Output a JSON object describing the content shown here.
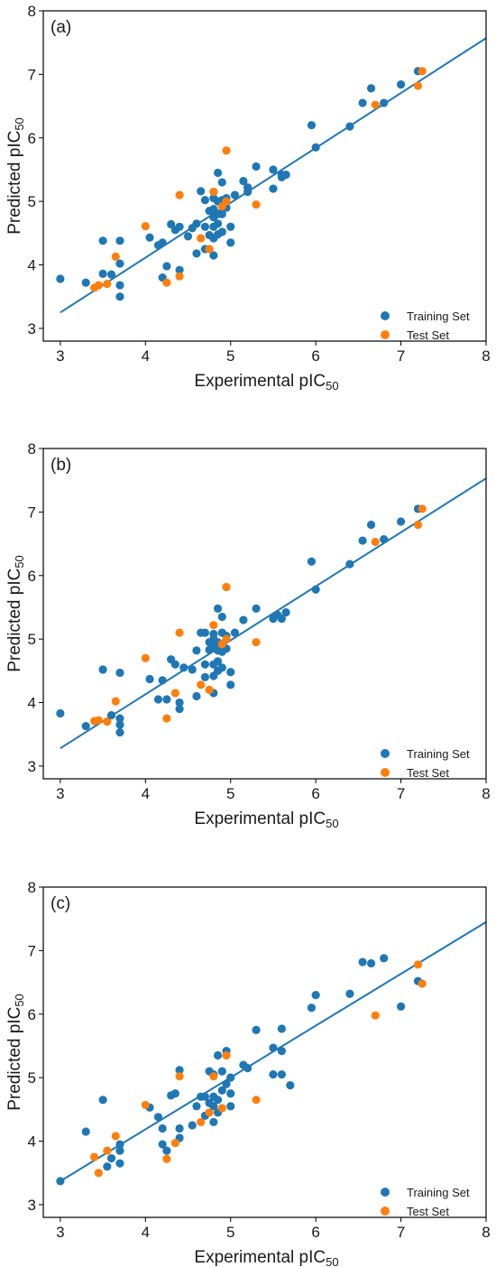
{
  "colors": {
    "training": "#1f77b4",
    "test": "#ff7f0e",
    "fit_line": "#1f77b4",
    "frame": "#000000"
  },
  "chart_data": [
    {
      "type": "scatter",
      "panel_label": "(a)",
      "xlabel": "Experimental pIC",
      "xlabel_sub": "50",
      "ylabel": "Predicted pIC",
      "ylabel_sub": "50",
      "xlim": [
        2.8,
        8.0
      ],
      "ylim": [
        2.8,
        8.0
      ],
      "xticks": [
        "3",
        "4",
        "5",
        "6",
        "7",
        "8"
      ],
      "yticks": [
        "3",
        "4",
        "5",
        "6",
        "7",
        "8"
      ],
      "grid": false,
      "legend_position": "bottom-right",
      "fit_line": {
        "x": [
          3.0,
          8.0
        ],
        "y": [
          3.25,
          7.57
        ]
      },
      "series": [
        {
          "name": "Training Set",
          "color": "#1f77b4",
          "points": [
            [
              3.0,
              3.78
            ],
            [
              3.3,
              3.72
            ],
            [
              3.5,
              3.86
            ],
            [
              3.5,
              4.38
            ],
            [
              3.6,
              3.85
            ],
            [
              3.7,
              3.68
            ],
            [
              3.7,
              3.5
            ],
            [
              3.7,
              4.02
            ],
            [
              3.7,
              4.38
            ],
            [
              4.05,
              4.43
            ],
            [
              4.15,
              4.31
            ],
            [
              4.2,
              3.8
            ],
            [
              4.2,
              4.35
            ],
            [
              4.25,
              3.98
            ],
            [
              4.3,
              4.64
            ],
            [
              4.35,
              4.55
            ],
            [
              4.4,
              3.92
            ],
            [
              4.4,
              4.6
            ],
            [
              4.5,
              4.45
            ],
            [
              4.55,
              4.58
            ],
            [
              4.6,
              4.18
            ],
            [
              4.6,
              4.65
            ],
            [
              4.65,
              5.16
            ],
            [
              4.7,
              4.25
            ],
            [
              4.7,
              4.6
            ],
            [
              4.7,
              5.02
            ],
            [
              4.75,
              4.47
            ],
            [
              4.75,
              4.85
            ],
            [
              4.8,
              4.15
            ],
            [
              4.8,
              4.42
            ],
            [
              4.8,
              4.6
            ],
            [
              4.8,
              4.75
            ],
            [
              4.8,
              4.88
            ],
            [
              4.8,
              5.05
            ],
            [
              4.8,
              5.15
            ],
            [
              4.85,
              4.48
            ],
            [
              4.85,
              4.65
            ],
            [
              4.85,
              4.8
            ],
            [
              4.85,
              5.0
            ],
            [
              4.85,
              5.45
            ],
            [
              4.9,
              4.52
            ],
            [
              4.9,
              4.8
            ],
            [
              4.9,
              4.95
            ],
            [
              4.9,
              5.02
            ],
            [
              4.9,
              5.3
            ],
            [
              4.95,
              4.9
            ],
            [
              4.95,
              5.05
            ],
            [
              5.0,
              4.35
            ],
            [
              5.0,
              4.6
            ],
            [
              5.05,
              5.1
            ],
            [
              5.15,
              5.32
            ],
            [
              5.2,
              5.15
            ],
            [
              5.2,
              5.22
            ],
            [
              5.3,
              5.55
            ],
            [
              5.5,
              5.2
            ],
            [
              5.5,
              5.5
            ],
            [
              5.6,
              5.38
            ],
            [
              5.6,
              5.42
            ],
            [
              5.65,
              5.42
            ],
            [
              5.95,
              6.2
            ],
            [
              6.0,
              5.85
            ],
            [
              6.4,
              6.18
            ],
            [
              6.55,
              6.55
            ],
            [
              6.65,
              6.78
            ],
            [
              6.8,
              6.55
            ],
            [
              7.0,
              6.84
            ],
            [
              7.2,
              7.05
            ]
          ]
        },
        {
          "name": "Test Set",
          "color": "#ff7f0e",
          "points": [
            [
              3.4,
              3.64
            ],
            [
              3.45,
              3.68
            ],
            [
              3.55,
              3.7
            ],
            [
              3.65,
              4.13
            ],
            [
              4.0,
              4.61
            ],
            [
              4.25,
              3.72
            ],
            [
              4.4,
              3.82
            ],
            [
              4.4,
              5.1
            ],
            [
              4.65,
              4.42
            ],
            [
              4.75,
              4.25
            ],
            [
              4.8,
              5.15
            ],
            [
              4.9,
              4.92
            ],
            [
              4.95,
              5.0
            ],
            [
              4.95,
              5.8
            ],
            [
              5.3,
              4.95
            ],
            [
              6.7,
              6.52
            ],
            [
              7.2,
              6.82
            ],
            [
              7.25,
              7.05
            ]
          ]
        }
      ]
    },
    {
      "type": "scatter",
      "panel_label": "(b)",
      "xlabel": "Experimental pIC",
      "xlabel_sub": "50",
      "ylabel": "Predicted pIC",
      "ylabel_sub": "50",
      "xlim": [
        2.8,
        8.0
      ],
      "ylim": [
        2.8,
        8.0
      ],
      "xticks": [
        "3",
        "4",
        "5",
        "6",
        "7",
        "8"
      ],
      "yticks": [
        "3",
        "4",
        "5",
        "6",
        "7",
        "8"
      ],
      "grid": false,
      "legend_position": "bottom-right",
      "fit_line": {
        "x": [
          3.0,
          8.0
        ],
        "y": [
          3.28,
          7.53
        ]
      },
      "series": [
        {
          "name": "Training Set",
          "color": "#1f77b4",
          "points": [
            [
              3.0,
              3.83
            ],
            [
              3.3,
              3.63
            ],
            [
              3.5,
              4.52
            ],
            [
              3.6,
              3.8
            ],
            [
              3.7,
              3.53
            ],
            [
              3.7,
              3.65
            ],
            [
              3.7,
              3.75
            ],
            [
              3.7,
              4.47
            ],
            [
              4.05,
              4.37
            ],
            [
              4.15,
              4.05
            ],
            [
              4.2,
              4.35
            ],
            [
              4.25,
              4.05
            ],
            [
              4.3,
              4.68
            ],
            [
              4.35,
              4.6
            ],
            [
              4.4,
              3.9
            ],
            [
              4.4,
              4.0
            ],
            [
              4.45,
              4.55
            ],
            [
              4.55,
              4.52
            ],
            [
              4.6,
              4.1
            ],
            [
              4.6,
              4.82
            ],
            [
              4.65,
              5.1
            ],
            [
              4.7,
              4.4
            ],
            [
              4.7,
              4.6
            ],
            [
              4.7,
              5.1
            ],
            [
              4.75,
              4.83
            ],
            [
              4.75,
              4.95
            ],
            [
              4.8,
              4.15
            ],
            [
              4.8,
              4.42
            ],
            [
              4.8,
              4.6
            ],
            [
              4.8,
              4.87
            ],
            [
              4.8,
              5.0
            ],
            [
              4.8,
              5.08
            ],
            [
              4.85,
              4.5
            ],
            [
              4.85,
              4.65
            ],
            [
              4.85,
              4.82
            ],
            [
              4.85,
              4.95
            ],
            [
              4.85,
              5.48
            ],
            [
              4.9,
              4.55
            ],
            [
              4.9,
              4.8
            ],
            [
              4.9,
              5.1
            ],
            [
              4.9,
              5.35
            ],
            [
              4.95,
              4.85
            ],
            [
              4.95,
              5.05
            ],
            [
              5.0,
              4.28
            ],
            [
              5.0,
              4.48
            ],
            [
              5.05,
              5.1
            ],
            [
              5.15,
              5.3
            ],
            [
              5.3,
              5.48
            ],
            [
              5.5,
              5.32
            ],
            [
              5.55,
              5.38
            ],
            [
              5.6,
              5.32
            ],
            [
              5.65,
              5.42
            ],
            [
              5.95,
              6.22
            ],
            [
              6.0,
              5.78
            ],
            [
              6.4,
              6.18
            ],
            [
              6.55,
              6.55
            ],
            [
              6.65,
              6.8
            ],
            [
              6.8,
              6.57
            ],
            [
              7.0,
              6.85
            ],
            [
              7.2,
              7.05
            ]
          ]
        },
        {
          "name": "Test Set",
          "color": "#ff7f0e",
          "points": [
            [
              3.4,
              3.71
            ],
            [
              3.45,
              3.72
            ],
            [
              3.55,
              3.7
            ],
            [
              3.65,
              4.02
            ],
            [
              4.0,
              4.7
            ],
            [
              4.25,
              3.75
            ],
            [
              4.35,
              4.15
            ],
            [
              4.4,
              5.1
            ],
            [
              4.65,
              4.28
            ],
            [
              4.75,
              4.2
            ],
            [
              4.8,
              5.22
            ],
            [
              4.9,
              4.92
            ],
            [
              4.95,
              5.0
            ],
            [
              4.95,
              5.82
            ],
            [
              5.3,
              4.95
            ],
            [
              6.7,
              6.53
            ],
            [
              7.2,
              6.8
            ],
            [
              7.25,
              7.05
            ]
          ]
        }
      ]
    },
    {
      "type": "scatter",
      "panel_label": "(c)",
      "xlabel": "Experimental pIC",
      "xlabel_sub": "50",
      "ylabel": "Predicted pIC",
      "ylabel_sub": "50",
      "xlim": [
        2.8,
        8.0
      ],
      "ylim": [
        2.8,
        8.0
      ],
      "xticks": [
        "3",
        "4",
        "5",
        "6",
        "7",
        "8"
      ],
      "yticks": [
        "3",
        "4",
        "5",
        "6",
        "7",
        "8"
      ],
      "grid": false,
      "legend_position": "bottom-right",
      "fit_line": {
        "x": [
          3.0,
          8.0
        ],
        "y": [
          3.37,
          7.45
        ]
      },
      "series": [
        {
          "name": "Training Set",
          "color": "#1f77b4",
          "points": [
            [
              3.0,
              3.37
            ],
            [
              3.3,
              4.15
            ],
            [
              3.5,
              4.65
            ],
            [
              3.55,
              3.6
            ],
            [
              3.6,
              3.73
            ],
            [
              3.7,
              3.65
            ],
            [
              3.7,
              3.85
            ],
            [
              3.7,
              3.95
            ],
            [
              4.05,
              4.53
            ],
            [
              4.15,
              4.38
            ],
            [
              4.2,
              3.95
            ],
            [
              4.2,
              4.2
            ],
            [
              4.25,
              3.85
            ],
            [
              4.3,
              4.72
            ],
            [
              4.35,
              4.75
            ],
            [
              4.4,
              4.05
            ],
            [
              4.4,
              4.2
            ],
            [
              4.4,
              5.12
            ],
            [
              4.55,
              4.25
            ],
            [
              4.6,
              4.55
            ],
            [
              4.65,
              4.7
            ],
            [
              4.7,
              4.4
            ],
            [
              4.7,
              4.7
            ],
            [
              4.75,
              4.6
            ],
            [
              4.75,
              5.1
            ],
            [
              4.8,
              4.3
            ],
            [
              4.8,
              4.55
            ],
            [
              4.8,
              4.7
            ],
            [
              4.8,
              5.05
            ],
            [
              4.85,
              4.45
            ],
            [
              4.85,
              4.65
            ],
            [
              4.85,
              5.35
            ],
            [
              4.9,
              4.8
            ],
            [
              4.9,
              5.1
            ],
            [
              4.95,
              4.9
            ],
            [
              4.95,
              5.42
            ],
            [
              5.0,
              4.55
            ],
            [
              5.0,
              4.75
            ],
            [
              5.0,
              5.0
            ],
            [
              5.15,
              5.2
            ],
            [
              5.2,
              5.15
            ],
            [
              5.3,
              5.75
            ],
            [
              5.5,
              5.05
            ],
            [
              5.5,
              5.47
            ],
            [
              5.6,
              5.05
            ],
            [
              5.6,
              5.42
            ],
            [
              5.6,
              5.77
            ],
            [
              5.7,
              4.88
            ],
            [
              5.95,
              6.1
            ],
            [
              6.0,
              6.3
            ],
            [
              6.4,
              6.32
            ],
            [
              6.55,
              6.82
            ],
            [
              6.65,
              6.8
            ],
            [
              6.8,
              6.88
            ],
            [
              7.0,
              6.12
            ],
            [
              7.2,
              6.52
            ]
          ]
        },
        {
          "name": "Test Set",
          "color": "#ff7f0e",
          "points": [
            [
              3.4,
              3.75
            ],
            [
              3.45,
              3.5
            ],
            [
              3.55,
              3.85
            ],
            [
              3.65,
              4.08
            ],
            [
              4.0,
              4.57
            ],
            [
              4.25,
              3.72
            ],
            [
              4.35,
              3.97
            ],
            [
              4.4,
              5.02
            ],
            [
              4.65,
              4.3
            ],
            [
              4.75,
              4.45
            ],
            [
              4.8,
              5.02
            ],
            [
              4.9,
              4.52
            ],
            [
              4.95,
              5.35
            ],
            [
              5.3,
              4.65
            ],
            [
              6.7,
              5.98
            ],
            [
              7.2,
              6.78
            ],
            [
              7.25,
              6.48
            ]
          ]
        }
      ]
    }
  ]
}
